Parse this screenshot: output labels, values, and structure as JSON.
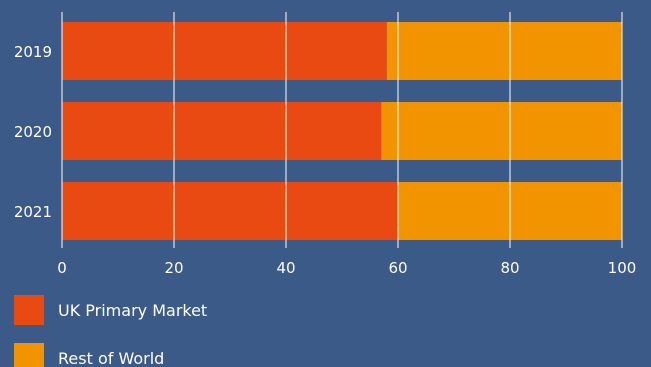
{
  "chart_data": {
    "type": "bar",
    "orientation": "horizontal",
    "stacked": true,
    "categories": [
      "2019",
      "2020",
      "2021"
    ],
    "series": [
      {
        "name": "UK Primary Market",
        "values": [
          58,
          57,
          60
        ],
        "color": "#e84a12"
      },
      {
        "name": "Rest of World",
        "values": [
          42,
          43,
          40
        ],
        "color": "#f29400"
      }
    ],
    "xlim": [
      0,
      100
    ],
    "xticks": [
      0,
      20,
      40,
      60,
      80,
      100
    ],
    "grid": "vertical",
    "legend_position": "bottom-left"
  },
  "colors": {
    "background": "#3b5a87",
    "gridline": "#ffffff",
    "text": "#ffffff"
  }
}
